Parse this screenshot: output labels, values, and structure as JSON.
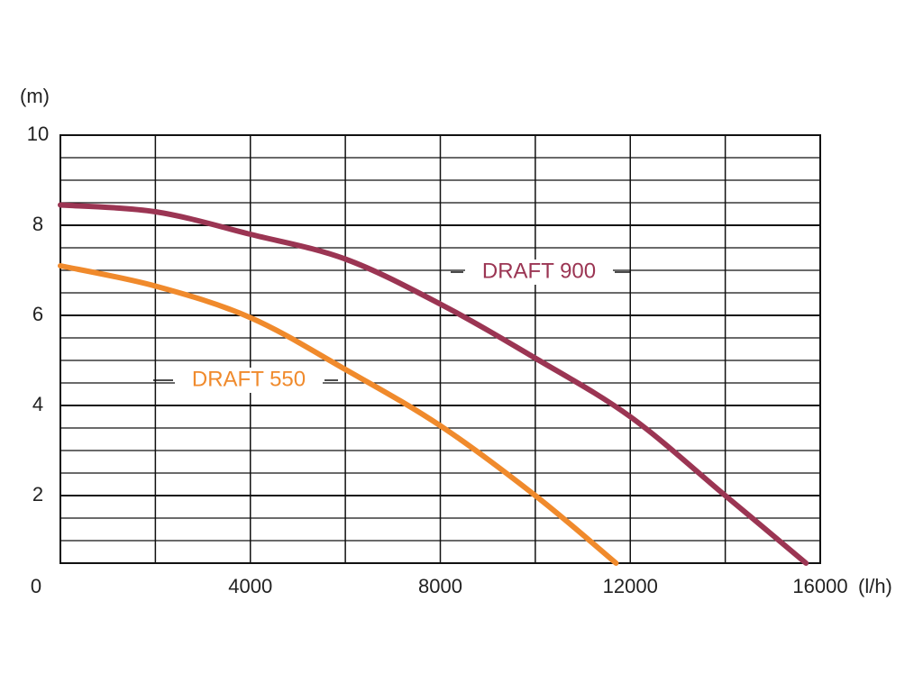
{
  "chart_data": {
    "type": "line",
    "y_label": "(m)",
    "x_label": "(l/h)",
    "xlim": [
      0,
      16000
    ],
    "xticks": [
      0,
      4000,
      8000,
      12000,
      16000
    ],
    "xminor_ticks": [
      2000,
      6000,
      10000,
      14000
    ],
    "ylim": [
      0.5,
      10
    ],
    "yticks": [
      2,
      4,
      6,
      8,
      10
    ],
    "yminor_ticks": [
      0.5,
      1,
      1.5,
      2.5,
      3,
      3.5,
      4.5,
      5,
      5.5,
      6.5,
      7,
      7.5,
      8.5,
      9,
      9.5
    ],
    "grid": true,
    "series": [
      {
        "name": "DRAFT 900",
        "color": "#9b3553",
        "x": [
          0,
          2000,
          4000,
          6000,
          8000,
          10000,
          12000,
          14000,
          15700
        ],
        "values": [
          8.45,
          8.3,
          7.8,
          7.25,
          6.25,
          5.05,
          3.75,
          2.0,
          0.5
        ]
      },
      {
        "name": "DRAFT 550",
        "color": "#f08a2c",
        "x": [
          0,
          2000,
          4000,
          6000,
          8000,
          10000,
          11700
        ],
        "values": [
          7.1,
          6.65,
          5.95,
          4.8,
          3.55,
          2.0,
          0.5
        ]
      }
    ]
  }
}
